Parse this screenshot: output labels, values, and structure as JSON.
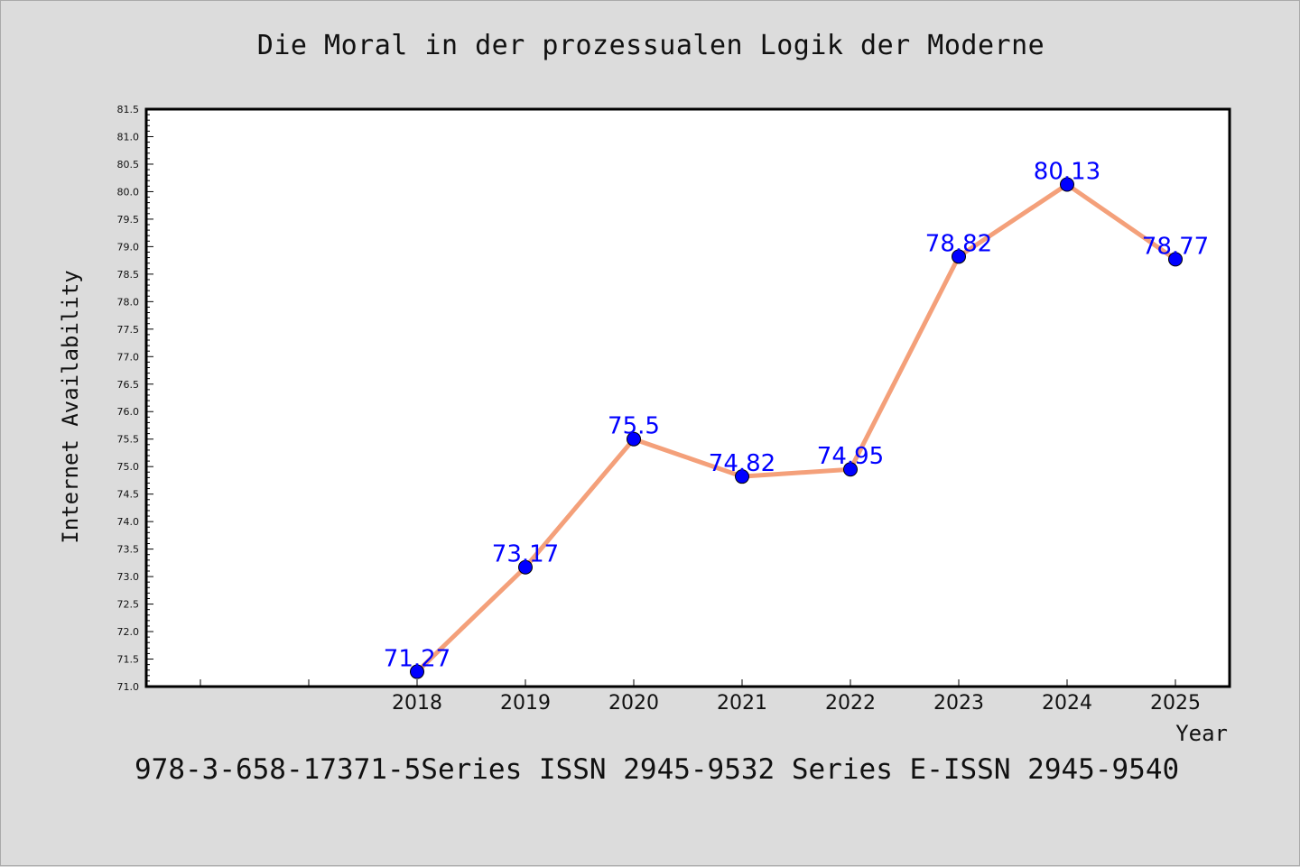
{
  "title": "Die Moral in der prozessualen Logik der Moderne",
  "footer": "978-3-658-17371-5Series ISSN 2945-9532 Series E-ISSN 2945-9540",
  "chart_data": {
    "type": "line",
    "title": "Die Moral in der prozessualen Logik der Moderne",
    "xlabel": "Year",
    "ylabel": "Internet Availability",
    "categories": [
      "",
      "",
      "2018",
      "2019",
      "2020",
      "2021",
      "2022",
      "2023",
      "2024",
      "2025"
    ],
    "series": [
      {
        "x": [
          "2018",
          "2019",
          "2020",
          "2021",
          "2022",
          "2023",
          "2024",
          "2025"
        ],
        "values": [
          71.27,
          73.17,
          75.5,
          74.82,
          74.95,
          78.82,
          80.13,
          78.77
        ],
        "labels": [
          "71.27",
          "73.17",
          "75.5",
          "74.82",
          "74.95",
          "78.82",
          "80.13",
          "78.77"
        ],
        "line_color": "#f4a07a",
        "marker_color": "#0000ff"
      }
    ],
    "ylim": [
      71.0,
      81.5
    ],
    "yticks": [
      "71.0",
      "71.5",
      "72.0",
      "72.5",
      "73.0",
      "73.5",
      "74.0",
      "74.5",
      "75.0",
      "75.5",
      "76.0",
      "76.5",
      "77.0",
      "77.5",
      "78.0",
      "78.5",
      "79.0",
      "79.5",
      "80.0",
      "80.5",
      "81.0",
      "81.5"
    ],
    "grid": false,
    "legend": "none",
    "colors": {
      "background": "#dcdcdc",
      "plot_background": "#ffffff",
      "label_color": "#0000ff"
    }
  }
}
